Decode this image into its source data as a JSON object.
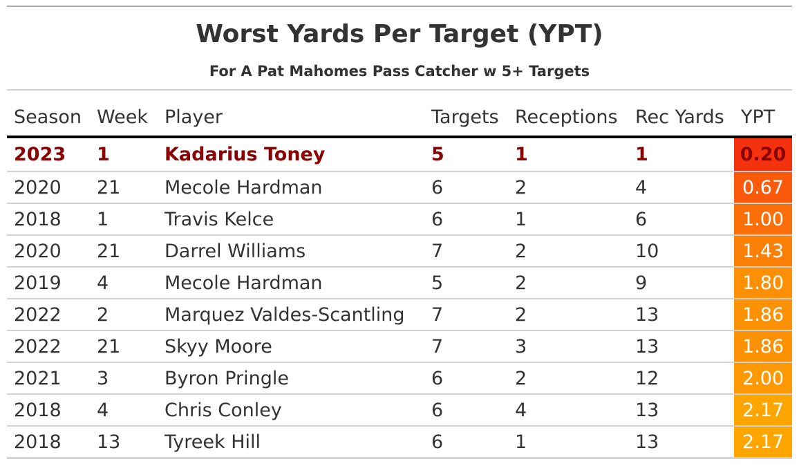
{
  "chart_data": {
    "type": "table",
    "title": "Worst Yards Per Target (YPT)",
    "subtitle": "For A Pat Mahomes Pass Catcher w 5+ Targets",
    "columns": [
      "Season",
      "Week",
      "Player",
      "Targets",
      "Receptions",
      "Rec Yards",
      "YPT"
    ],
    "highlight_row": 0,
    "rows": [
      {
        "season": "2023",
        "week": "1",
        "player": "Kadarius Toney",
        "targets": "5",
        "receptions": "1",
        "rec_yards": "1",
        "ypt": "0.20",
        "ypt_color": "#f5320e"
      },
      {
        "season": "2020",
        "week": "21",
        "player": "Mecole Hardman",
        "targets": "6",
        "receptions": "2",
        "rec_yards": "4",
        "ypt": "0.67",
        "ypt_color": "#fa5a0a"
      },
      {
        "season": "2018",
        "week": "1",
        "player": "Travis Kelce",
        "targets": "6",
        "receptions": "1",
        "rec_yards": "6",
        "ypt": "1.00",
        "ypt_color": "#fb6e08"
      },
      {
        "season": "2020",
        "week": "21",
        "player": "Darrel Williams",
        "targets": "7",
        "receptions": "2",
        "rec_yards": "10",
        "ypt": "1.43",
        "ypt_color": "#fc7f06"
      },
      {
        "season": "2019",
        "week": "4",
        "player": "Mecole Hardman",
        "targets": "5",
        "receptions": "2",
        "rec_yards": "9",
        "ypt": "1.80",
        "ypt_color": "#fd8f04"
      },
      {
        "season": "2022",
        "week": "2",
        "player": "Marquez Valdes-Scantling",
        "targets": "7",
        "receptions": "2",
        "rec_yards": "13",
        "ypt": "1.86",
        "ypt_color": "#fd9104"
      },
      {
        "season": "2022",
        "week": "21",
        "player": "Skyy Moore",
        "targets": "7",
        "receptions": "3",
        "rec_yards": "13",
        "ypt": "1.86",
        "ypt_color": "#fd9104"
      },
      {
        "season": "2021",
        "week": "3",
        "player": "Byron Pringle",
        "targets": "6",
        "receptions": "2",
        "rec_yards": "12",
        "ypt": "2.00",
        "ypt_color": "#fe9803"
      },
      {
        "season": "2018",
        "week": "4",
        "player": "Chris Conley",
        "targets": "6",
        "receptions": "4",
        "rec_yards": "13",
        "ypt": "2.17",
        "ypt_color": "#ffa500"
      },
      {
        "season": "2018",
        "week": "13",
        "player": "Tyreek Hill",
        "targets": "6",
        "receptions": "1",
        "rec_yards": "13",
        "ypt": "2.17",
        "ypt_color": "#ffa500"
      }
    ]
  }
}
